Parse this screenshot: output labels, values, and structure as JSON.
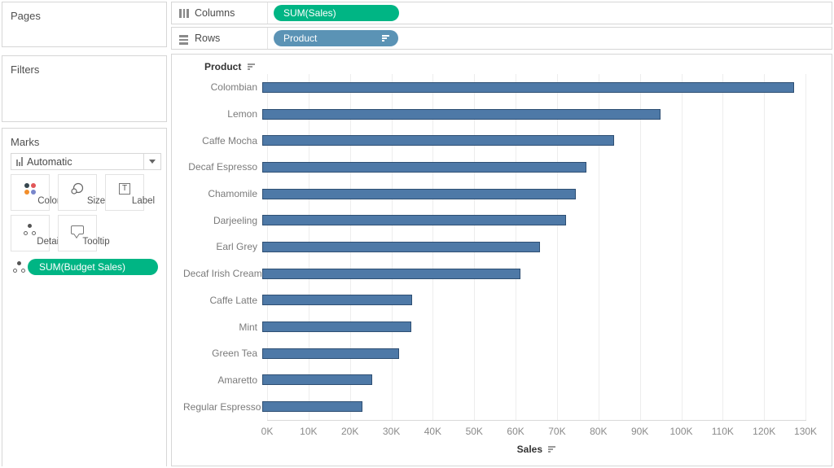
{
  "left_panel": {
    "pages_title": "Pages",
    "filters_title": "Filters",
    "marks": {
      "title": "Marks",
      "mark_type": "Automatic",
      "buttons": {
        "color": "Color",
        "size": "Size",
        "label": "Label",
        "detail": "Detail",
        "tooltip": "Tooltip"
      },
      "label_icon_char": "T",
      "detail_pill": "SUM(Budget Sales)"
    }
  },
  "shelves": {
    "columns_label": "Columns",
    "columns_pill": "SUM(Sales)",
    "rows_label": "Rows",
    "rows_pill": "Product"
  },
  "colors": {
    "pill_green": "#00b584",
    "pill_blue": "#5b93b5",
    "bar_fill": "#4e79a7",
    "bar_border": "#2e4f73"
  },
  "chart_data": {
    "type": "bar",
    "orientation": "horizontal",
    "row_header": "Product",
    "xlabel": "Sales",
    "sort": "descending by SUM(Sales)",
    "legend": "none",
    "grid": true,
    "categories": [
      "Colombian",
      "Lemon",
      "Caffe Mocha",
      "Decaf Espresso",
      "Chamomile",
      "Darjeeling",
      "Earl Grey",
      "Decaf Irish Cream",
      "Caffe Latte",
      "Mint",
      "Green Tea",
      "Amaretto",
      "Regular Espresso"
    ],
    "values_k_usd": [
      128.5,
      96.2,
      85.0,
      78.3,
      75.7,
      73.3,
      67.0,
      62.3,
      36.1,
      35.9,
      33.0,
      26.5,
      24.2
    ],
    "x_ticks": [
      "0K",
      "10K",
      "20K",
      "30K",
      "40K",
      "50K",
      "60K",
      "70K",
      "80K",
      "90K",
      "100K",
      "110K",
      "120K",
      "130K"
    ],
    "xlim_k": [
      0,
      134
    ]
  }
}
